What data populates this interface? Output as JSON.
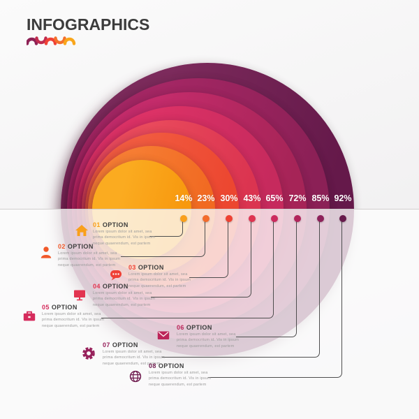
{
  "header": {
    "title": "INFOGRAPHICS",
    "squiggle_colors": [
      "#8E2155",
      "#C02C4E",
      "#EF4136",
      "#F3702B",
      "#F9A61B"
    ]
  },
  "chart_data": {
    "type": "concentric-circle-infographic",
    "title": "INFOGRAPHICS",
    "values": [
      14,
      23,
      30,
      43,
      65,
      72,
      85,
      92
    ],
    "labels": [
      "14%",
      "23%",
      "30%",
      "43%",
      "65%",
      "72%",
      "85%",
      "92%"
    ],
    "ring_gradients": [
      [
        "#FBAB20",
        "#F8990F"
      ],
      [
        "#F67D33",
        "#F16A22"
      ],
      [
        "#F15B40",
        "#EC4730"
      ],
      [
        "#E94A5C",
        "#DB3450"
      ],
      [
        "#DC3266",
        "#C62A5D"
      ],
      [
        "#C42C6B",
        "#A62457"
      ],
      [
        "#A42764",
        "#8B2056"
      ],
      [
        "#7C2B5C",
        "#65194A"
      ]
    ],
    "dot_colors": [
      "#F9A01B",
      "#F36B2B",
      "#EF4132",
      "#DF3450",
      "#CC2A5E",
      "#B2245C",
      "#8E215A",
      "#671A4C"
    ],
    "legend_position": "bottom-left-staggered",
    "options": [
      {
        "num": "01",
        "label": "OPTION",
        "icon": "home-icon",
        "color": "#F9A01B",
        "description": "Lorem ipsum dolor sit amet, sea prima democritum id. Vis in ipsum neque quaerendum, est partem"
      },
      {
        "num": "02",
        "label": "OPTION",
        "icon": "person-icon",
        "color": "#F1592A",
        "description": "Lorem ipsum dolor sit amet, sea prima democritum id. Vis in ipsum neque quaerendum, est partem"
      },
      {
        "num": "03",
        "label": "OPTION",
        "icon": "chat-icon",
        "color": "#EF4136",
        "description": "Lorem ipsum dolor sit amet, sea prima democritum id. Vis in ipsum neque quaerendum, est partem"
      },
      {
        "num": "04",
        "label": "OPTION",
        "icon": "monitor-icon",
        "color": "#E23450",
        "description": "Lorem ipsum dolor sit amet, sea prima democritum id. Vis in ipsum neque quaerendum, est partem"
      },
      {
        "num": "05",
        "label": "OPTION",
        "icon": "briefcase-icon",
        "color": "#D52B5C",
        "description": "Lorem ipsum dolor sit amet, sea prima democritum id. Vis in ipsum neque quaerendum, est partem"
      },
      {
        "num": "06",
        "label": "OPTION",
        "icon": "envelope-icon",
        "color": "#BC2459",
        "description": "Lorem ipsum dolor sit amet, sea prima democritum id. Vis in ipsum neque quaerendum, est partem"
      },
      {
        "num": "07",
        "label": "OPTION",
        "icon": "gear-icon",
        "color": "#97215B",
        "description": "Lorem ipsum dolor sit amet, sea prima democritum id. Vis in ipsum neque quaerendum, est partem"
      },
      {
        "num": "08",
        "label": "OPTION",
        "icon": "globe-icon",
        "color": "#6F1C4F",
        "description": "Lorem ipsum dolor sit amet, sea prima democritum id. Vis in ipsum neque quaerendum, est partem"
      }
    ]
  }
}
